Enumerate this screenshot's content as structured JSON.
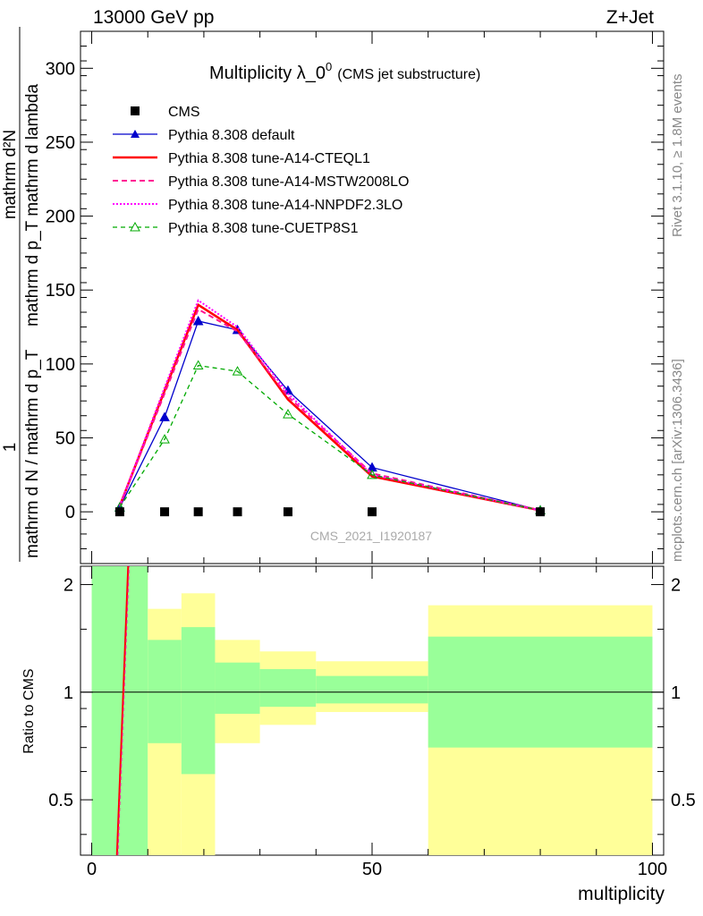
{
  "header": {
    "left": "13000 GeV pp",
    "right": "Z+Jet"
  },
  "chart_data": [
    {
      "type": "line",
      "title": "Multiplicity λ_0⁰",
      "title_main": "Multiplicity λ_0",
      "title_sup": "0",
      "subtitle": "(CMS jet substructure)",
      "ylabel_numerator": "mathrm d²N",
      "ylabel_denominator": "mathrm d p_T mathrm d lambda",
      "ylabel_prefix_num": "1",
      "ylabel_prefix_den": "mathrm d N / mathrm d p_T",
      "ylabel_full": "1 / (mathrm d N / mathrm d p_T) · mathrm d²N / (mathrm d p_T mathrm d lambda)",
      "ylim": [
        -35,
        325
      ],
      "yticks": [
        0,
        50,
        100,
        150,
        200,
        250,
        300
      ],
      "xlim": [
        -2,
        102
      ],
      "x": [
        5,
        13,
        19,
        26,
        35,
        50,
        80
      ],
      "series": [
        {
          "name": "CMS",
          "color": "#000000",
          "style": "marker",
          "values": [
            0,
            0,
            0,
            0,
            0,
            0,
            0
          ]
        },
        {
          "name": "Pythia 8.308 default",
          "color": "#0000cc",
          "style": "solid-triangle",
          "values": [
            3,
            64,
            129,
            123,
            82,
            30,
            1
          ]
        },
        {
          "name": "Pythia 8.308 tune-A14-CTEQL1",
          "color": "#ff0000",
          "style": "thick",
          "values": [
            4,
            82,
            140,
            123,
            76,
            24,
            1
          ]
        },
        {
          "name": "Pythia 8.308 tune-A14-MSTW2008LO",
          "color": "#ff1493",
          "style": "dashed",
          "values": [
            4,
            80,
            137,
            122,
            78,
            26,
            1
          ]
        },
        {
          "name": "Pythia 8.308 tune-A14-NNPDF2.3LO",
          "color": "#ff00ff",
          "style": "dotted",
          "values": [
            4,
            84,
            143,
            125,
            80,
            25,
            1
          ]
        },
        {
          "name": "Pythia 8.308 tune-CUETP8S1",
          "color": "#00aa00",
          "style": "dashed-open-triangle",
          "values": [
            3,
            49,
            99,
            95,
            66,
            25,
            1
          ]
        }
      ],
      "watermark": "CMS_2021_I1920187",
      "legend_position": "top-left"
    },
    {
      "type": "area",
      "ylabel": "Ratio to CMS",
      "xlabel": "multiplicity",
      "ylim": [
        0.35,
        2.25
      ],
      "yticks": [
        0.5,
        1,
        2
      ],
      "ytick_labels": [
        "0.5",
        "1",
        "2"
      ],
      "xticks": [
        0,
        50,
        100
      ],
      "xtick_labels": [
        "0",
        "50",
        "100"
      ],
      "reference_line": 1,
      "bins": [
        {
          "lo": 0,
          "hi": 10,
          "yellow": [
            0.35,
            2.25
          ],
          "green": [
            0.35,
            2.25
          ]
        },
        {
          "lo": 10,
          "hi": 16,
          "yellow": [
            0.35,
            1.71
          ],
          "green": [
            0.72,
            1.4
          ]
        },
        {
          "lo": 16,
          "hi": 22,
          "yellow": [
            0.35,
            1.89
          ],
          "green": [
            0.59,
            1.52
          ]
        },
        {
          "lo": 22,
          "hi": 30,
          "yellow": [
            0.72,
            1.4
          ],
          "green": [
            0.87,
            1.21
          ]
        },
        {
          "lo": 30,
          "hi": 40,
          "yellow": [
            0.81,
            1.3
          ],
          "green": [
            0.91,
            1.16
          ]
        },
        {
          "lo": 40,
          "hi": 60,
          "yellow": [
            0.88,
            1.22
          ],
          "green": [
            0.93,
            1.11
          ]
        },
        {
          "lo": 60,
          "hi": 100,
          "yellow": [
            0.35,
            1.75
          ],
          "green": [
            0.7,
            1.43
          ]
        }
      ],
      "ratio_line": {
        "x": [
          4.5,
          6.5
        ],
        "y": [
          0.35,
          2.25
        ],
        "color": "#ff0000"
      }
    }
  ],
  "side_text": {
    "rivet": "Rivet 3.1.10, ≥ 1.8M events",
    "mcplots": "mcplots.cern.ch [arXiv:1306.3436]"
  }
}
